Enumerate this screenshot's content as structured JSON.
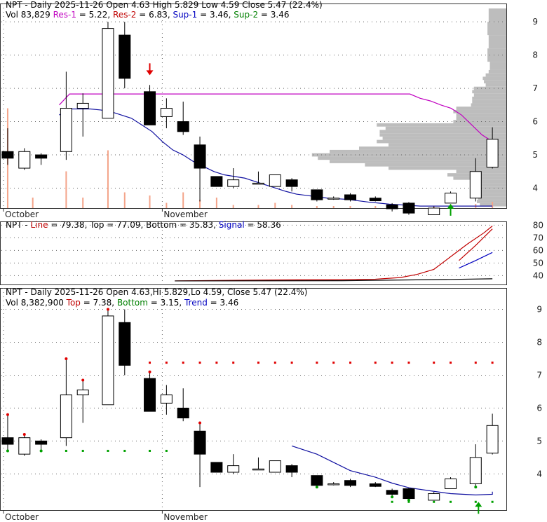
{
  "chart_data": [
    {
      "type": "candlestick",
      "panel": "price",
      "header_line1": [
        {
          "text": "NPT - Daily 2025-11-26 Open 4.63  High 5.829  Low 4.59  Close 5.47 (22.4%)",
          "color": "#000000"
        }
      ],
      "header_line2": [
        {
          "text": "Vol 83,829 ",
          "color": "#000000"
        },
        {
          "text": "Res-1",
          "color": "#c000c0"
        },
        {
          "text": " = 5.22, ",
          "color": "#000000"
        },
        {
          "text": "Res-2",
          "color": "#c00000"
        },
        {
          "text": " = 6.83, ",
          "color": "#000000"
        },
        {
          "text": "Sup-1",
          "color": "#0000c0"
        },
        {
          "text": " = 3.46, ",
          "color": "#000000"
        },
        {
          "text": "Sup-2",
          "color": "#008000"
        },
        {
          "text": " = 3.46",
          "color": "#000000"
        }
      ],
      "yticks": [
        4,
        5,
        6,
        7,
        8,
        9
      ],
      "ylim": [
        3.4,
        9.55
      ],
      "month_labels": [
        {
          "label": "October",
          "index": 0
        },
        {
          "label": "November",
          "index": 8
        }
      ],
      "res_line": [
        null,
        null,
        null,
        null,
        null,
        6.5,
        6.83,
        6.83,
        6.83,
        6.83,
        6.83,
        6.83,
        6.83,
        6.83,
        6.83,
        6.83,
        6.83,
        6.83,
        6.83,
        6.83,
        6.83,
        6.83,
        6.83,
        6.83,
        6.83,
        6.83,
        6.83,
        6.83,
        6.83,
        6.83,
        6.83,
        6.83,
        6.83,
        6.83,
        6.83,
        6.83,
        6.83,
        6.83,
        6.83,
        6.83,
        6.7,
        6.62,
        6.5,
        6.4,
        6.2,
        5.9,
        5.6,
        5.4
      ],
      "sup_line": [
        null,
        null,
        null,
        null,
        null,
        6.2,
        6.38,
        6.38,
        6.38,
        6.35,
        6.3,
        6.2,
        6.1,
        5.9,
        5.7,
        5.4,
        5.15,
        5.0,
        4.8,
        4.65,
        4.5,
        4.4,
        4.35,
        4.3,
        4.2,
        4.1,
        4.0,
        3.9,
        3.82,
        3.78,
        3.74,
        3.7,
        3.68,
        3.66,
        3.62,
        3.58,
        3.55,
        3.52,
        3.5,
        3.48,
        3.46,
        3.46,
        3.46,
        3.46,
        3.46,
        3.46,
        3.46,
        3.46
      ],
      "volume_profile": [
        {
          "lo": 3.45,
          "hi": 3.55,
          "len": 45
        },
        {
          "lo": 3.55,
          "hi": 3.65,
          "len": 50
        },
        {
          "lo": 3.65,
          "hi": 3.75,
          "len": 48
        },
        {
          "lo": 3.75,
          "hi": 3.85,
          "len": 55
        },
        {
          "lo": 3.85,
          "hi": 3.95,
          "len": 60
        },
        {
          "lo": 3.95,
          "hi": 4.05,
          "len": 58
        },
        {
          "lo": 4.05,
          "hi": 4.15,
          "len": 56
        },
        {
          "lo": 4.15,
          "hi": 4.25,
          "len": 60
        },
        {
          "lo": 4.25,
          "hi": 4.35,
          "len": 90
        },
        {
          "lo": 4.35,
          "hi": 4.45,
          "len": 100
        },
        {
          "lo": 4.45,
          "hi": 4.55,
          "len": 85
        },
        {
          "lo": 4.55,
          "hi": 4.65,
          "len": 200
        },
        {
          "lo": 4.65,
          "hi": 4.75,
          "len": 240
        },
        {
          "lo": 4.75,
          "hi": 4.85,
          "len": 300
        },
        {
          "lo": 4.85,
          "hi": 4.95,
          "len": 320
        },
        {
          "lo": 4.95,
          "hi": 5.05,
          "len": 330
        },
        {
          "lo": 5.05,
          "hi": 5.15,
          "len": 300
        },
        {
          "lo": 5.15,
          "hi": 5.25,
          "len": 250
        },
        {
          "lo": 5.25,
          "hi": 5.35,
          "len": 200
        },
        {
          "lo": 5.35,
          "hi": 5.45,
          "len": 220
        },
        {
          "lo": 5.45,
          "hi": 5.55,
          "len": 210
        },
        {
          "lo": 5.55,
          "hi": 5.65,
          "len": 215
        },
        {
          "lo": 5.65,
          "hi": 5.75,
          "len": 215
        },
        {
          "lo": 5.75,
          "hi": 5.85,
          "len": 205
        },
        {
          "lo": 5.85,
          "hi": 5.95,
          "len": 220
        },
        {
          "lo": 5.95,
          "hi": 6.05,
          "len": 90
        },
        {
          "lo": 6.05,
          "hi": 6.15,
          "len": 85
        },
        {
          "lo": 6.15,
          "hi": 6.25,
          "len": 85
        },
        {
          "lo": 6.25,
          "hi": 6.35,
          "len": 90
        },
        {
          "lo": 6.35,
          "hi": 6.45,
          "len": 85
        },
        {
          "lo": 6.45,
          "hi": 6.55,
          "len": 60
        },
        {
          "lo": 6.55,
          "hi": 6.65,
          "len": 58
        },
        {
          "lo": 6.65,
          "hi": 6.75,
          "len": 58
        },
        {
          "lo": 6.75,
          "hi": 6.85,
          "len": 55
        },
        {
          "lo": 6.85,
          "hi": 6.95,
          "len": 58
        },
        {
          "lo": 6.95,
          "hi": 7.05,
          "len": 55
        },
        {
          "lo": 7.05,
          "hi": 7.15,
          "len": 35
        },
        {
          "lo": 7.15,
          "hi": 7.25,
          "len": 38
        },
        {
          "lo": 7.25,
          "hi": 7.35,
          "len": 40
        },
        {
          "lo": 7.35,
          "hi": 7.45,
          "len": 35
        },
        {
          "lo": 7.45,
          "hi": 7.55,
          "len": 30
        },
        {
          "lo": 7.55,
          "hi": 7.8,
          "len": 28
        },
        {
          "lo": 7.8,
          "hi": 8.2,
          "len": 32
        },
        {
          "lo": 8.2,
          "hi": 8.6,
          "len": 30
        },
        {
          "lo": 8.6,
          "hi": 9.0,
          "len": 32
        },
        {
          "lo": 9.0,
          "hi": 9.4,
          "len": 30
        }
      ],
      "sell_arrows": [
        {
          "index": 7,
          "value": 7.5
        }
      ],
      "buy_arrows": [
        {
          "index": 23,
          "value": 3.55
        }
      ],
      "candles": [
        {
          "o": 5.1,
          "h": 5.8,
          "l": 4.7,
          "c": 4.9
        },
        {
          "o": 4.6,
          "h": 5.2,
          "l": 4.55,
          "c": 5.1
        },
        {
          "o": 5.0,
          "h": 5.05,
          "l": 4.7,
          "c": 4.9
        },
        {
          "o": 5.1,
          "h": 7.5,
          "l": 4.85,
          "c": 6.4
        },
        {
          "o": 6.4,
          "h": 6.85,
          "l": 5.55,
          "c": 6.55
        },
        {
          "o": 6.1,
          "h": 9.0,
          "l": 6.1,
          "c": 8.8
        },
        {
          "o": 8.6,
          "h": 9.0,
          "l": 7.0,
          "c": 7.3
        },
        {
          "o": 6.9,
          "h": 7.1,
          "l": 5.9,
          "c": 5.9
        },
        {
          "o": 6.15,
          "h": 6.7,
          "l": 5.8,
          "c": 6.4
        },
        {
          "o": 6.0,
          "h": 6.6,
          "l": 5.6,
          "c": 5.7
        },
        {
          "o": 5.3,
          "h": 5.55,
          "l": 3.6,
          "c": 4.6
        },
        {
          "o": 4.35,
          "h": 4.35,
          "l": 4.05,
          "c": 4.05
        },
        {
          "o": 4.05,
          "h": 4.6,
          "l": 4.0,
          "c": 4.25
        },
        {
          "o": 4.15,
          "h": 4.5,
          "l": 4.15,
          "c": 4.15
        },
        {
          "o": 4.05,
          "h": 4.4,
          "l": 4.05,
          "c": 4.4
        },
        {
          "o": 4.25,
          "h": 4.3,
          "l": 3.9,
          "c": 4.05
        },
        {
          "o": 3.95,
          "h": 3.95,
          "l": 3.6,
          "c": 3.65
        },
        {
          "o": 3.7,
          "h": 3.75,
          "l": 3.65,
          "c": 3.7
        },
        {
          "o": 3.8,
          "h": 3.85,
          "l": 3.6,
          "c": 3.65
        },
        {
          "o": 3.7,
          "h": 3.75,
          "l": 3.6,
          "c": 3.62
        },
        {
          "o": 3.5,
          "h": 3.55,
          "l": 3.3,
          "c": 3.38
        },
        {
          "o": 3.55,
          "h": 3.58,
          "l": 3.2,
          "c": 3.25
        },
        {
          "o": 3.2,
          "h": 3.45,
          "l": 3.2,
          "c": 3.4
        },
        {
          "o": 3.55,
          "h": 3.9,
          "l": 3.55,
          "c": 3.85
        },
        {
          "o": 3.7,
          "h": 4.9,
          "l": 3.6,
          "c": 4.5
        },
        {
          "o": 4.63,
          "h": 5.829,
          "l": 4.59,
          "c": 5.47
        }
      ],
      "candle_x_index": [
        0,
        2,
        4,
        7,
        9,
        12,
        14,
        17,
        19,
        21,
        23,
        25,
        27,
        30,
        32,
        34,
        37,
        39,
        41,
        44,
        46,
        48,
        51,
        53,
        56,
        58
      ],
      "volume": [
        {
          "index": 0,
          "value": 0.95
        },
        {
          "index": 3,
          "value": 0.1
        },
        {
          "index": 7,
          "value": 0.35
        },
        {
          "index": 9,
          "value": 0.1
        },
        {
          "index": 12,
          "value": 0.55
        },
        {
          "index": 14,
          "value": 0.15
        },
        {
          "index": 17,
          "value": 0.12
        },
        {
          "index": 19,
          "value": 0.05
        },
        {
          "index": 21,
          "value": 0.15
        },
        {
          "index": 23,
          "value": 0.08
        },
        {
          "index": 25,
          "value": 0.1
        },
        {
          "index": 27,
          "value": 0.03
        },
        {
          "index": 30,
          "value": 0.03
        },
        {
          "index": 32,
          "value": 0.05
        },
        {
          "index": 34,
          "value": 0.03
        },
        {
          "index": 37,
          "value": 0.02
        },
        {
          "index": 39,
          "value": 0.02
        },
        {
          "index": 41,
          "value": 0.02
        },
        {
          "index": 44,
          "value": 0.02
        },
        {
          "index": 46,
          "value": 0.02
        },
        {
          "index": 48,
          "value": 0.02
        },
        {
          "index": 51,
          "value": 0.02
        },
        {
          "index": 53,
          "value": 0.03
        },
        {
          "index": 56,
          "value": 0.04
        },
        {
          "index": 58,
          "value": 0.06
        }
      ]
    },
    {
      "type": "line",
      "panel": "indicator",
      "header": [
        {
          "text": "NPT - ",
          "color": "#000000"
        },
        {
          "text": "Line",
          "color": "#c00000"
        },
        {
          "text": " = 79.38, Top = 77.09, Bottom = 35.83, ",
          "color": "#000000"
        },
        {
          "text": "Signal",
          "color": "#0000c0"
        },
        {
          "text": " = 58.36",
          "color": "#000000"
        }
      ],
      "yticks": [
        40,
        50,
        60,
        70,
        80
      ],
      "ylim": [
        33,
        83
      ],
      "series": [
        {
          "color": "#c00000",
          "points": [
            [
              20,
              35.8
            ],
            [
              30,
              36.5
            ],
            [
              38,
              36.8
            ],
            [
              44,
              37.2
            ],
            [
              47,
              38.5
            ],
            [
              49,
              41
            ],
            [
              51,
              45
            ],
            [
              53,
              55
            ],
            [
              55,
              65
            ],
            [
              57,
              74
            ],
            [
              58,
              79.38
            ]
          ]
        },
        {
          "color": "#000000",
          "points": [
            [
              20,
              35.8
            ],
            [
              30,
              35.9
            ],
            [
              40,
              36.0
            ],
            [
              48,
              36.6
            ],
            [
              53,
              37.0
            ],
            [
              58,
              37.5
            ]
          ]
        },
        {
          "color": "#0000c0",
          "points": [
            [
              54,
              46
            ],
            [
              56,
              52
            ],
            [
              58,
              58.36
            ]
          ]
        }
      ],
      "series_b_red": [
        [
          54,
          52
        ],
        [
          56,
          64
        ],
        [
          58,
          77.09
        ]
      ]
    },
    {
      "type": "candlestick",
      "panel": "lower",
      "header_line1": [
        {
          "text": "NPT - Daily 2025-11-26 Open 4.63,Hi 5.829,Lo 4.59,  Close 5.47 (22.4%)",
          "color": "#000000"
        }
      ],
      "header_line2": [
        {
          "text": "Vol 8,382,900 ",
          "color": "#000000"
        },
        {
          "text": "Top",
          "color": "#c00000"
        },
        {
          "text": " = 7.38, ",
          "color": "#000000"
        },
        {
          "text": "Bottom",
          "color": "#008000"
        },
        {
          "text": " = 3.15, ",
          "color": "#000000"
        },
        {
          "text": "Trend",
          "color": "#0000c0"
        },
        {
          "text": " = 3.46",
          "color": "#000000"
        }
      ],
      "yticks": [
        4,
        5,
        6,
        7,
        8,
        9
      ],
      "ylim": [
        2.9,
        9.65
      ],
      "month_labels": [
        {
          "label": "October",
          "index": 0
        },
        {
          "label": "November",
          "index": 8
        }
      ],
      "top_dots": {
        "from": 7,
        "to": 26,
        "value": 7.38
      },
      "bottom_dots": {
        "from": 0,
        "to": 9,
        "value": 4.7
      },
      "bottom_dots_late": {
        "from": 20,
        "to": 26,
        "value": 3.15
      },
      "trend_line": [
        null,
        null,
        null,
        null,
        null,
        null,
        null,
        null,
        null,
        null,
        null,
        null,
        null,
        null,
        null,
        4.85,
        4.6,
        4.35,
        4.1,
        3.9,
        3.72,
        3.58,
        3.47,
        3.4,
        3.36,
        3.38,
        3.46
      ],
      "red_dot_tops": [
        0,
        1,
        3,
        4,
        5,
        7,
        10
      ],
      "green_dot_bottoms": [
        0,
        2,
        16,
        20,
        21,
        24
      ]
    }
  ]
}
